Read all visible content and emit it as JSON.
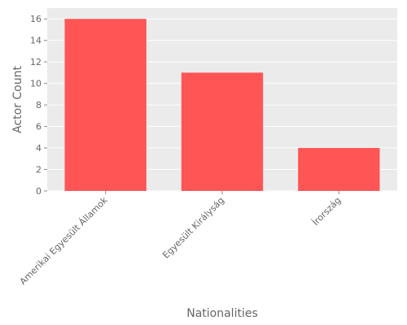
{
  "chart_data": {
    "type": "bar",
    "categories": [
      "Amerikai Egyesült Államok",
      "Egyesült Királyság",
      "Írország"
    ],
    "values": [
      16,
      11,
      4
    ],
    "xlabel": "Nationalities",
    "ylabel": "Actor Count",
    "ylim": [
      0,
      17
    ],
    "yticks": [
      0,
      2,
      4,
      6,
      8,
      10,
      12,
      14,
      16
    ],
    "grid": true,
    "bar_color": "#ff5555",
    "panel_background": "#ebebeb",
    "grid_color": "#ffffff",
    "text_color": "#666666"
  }
}
